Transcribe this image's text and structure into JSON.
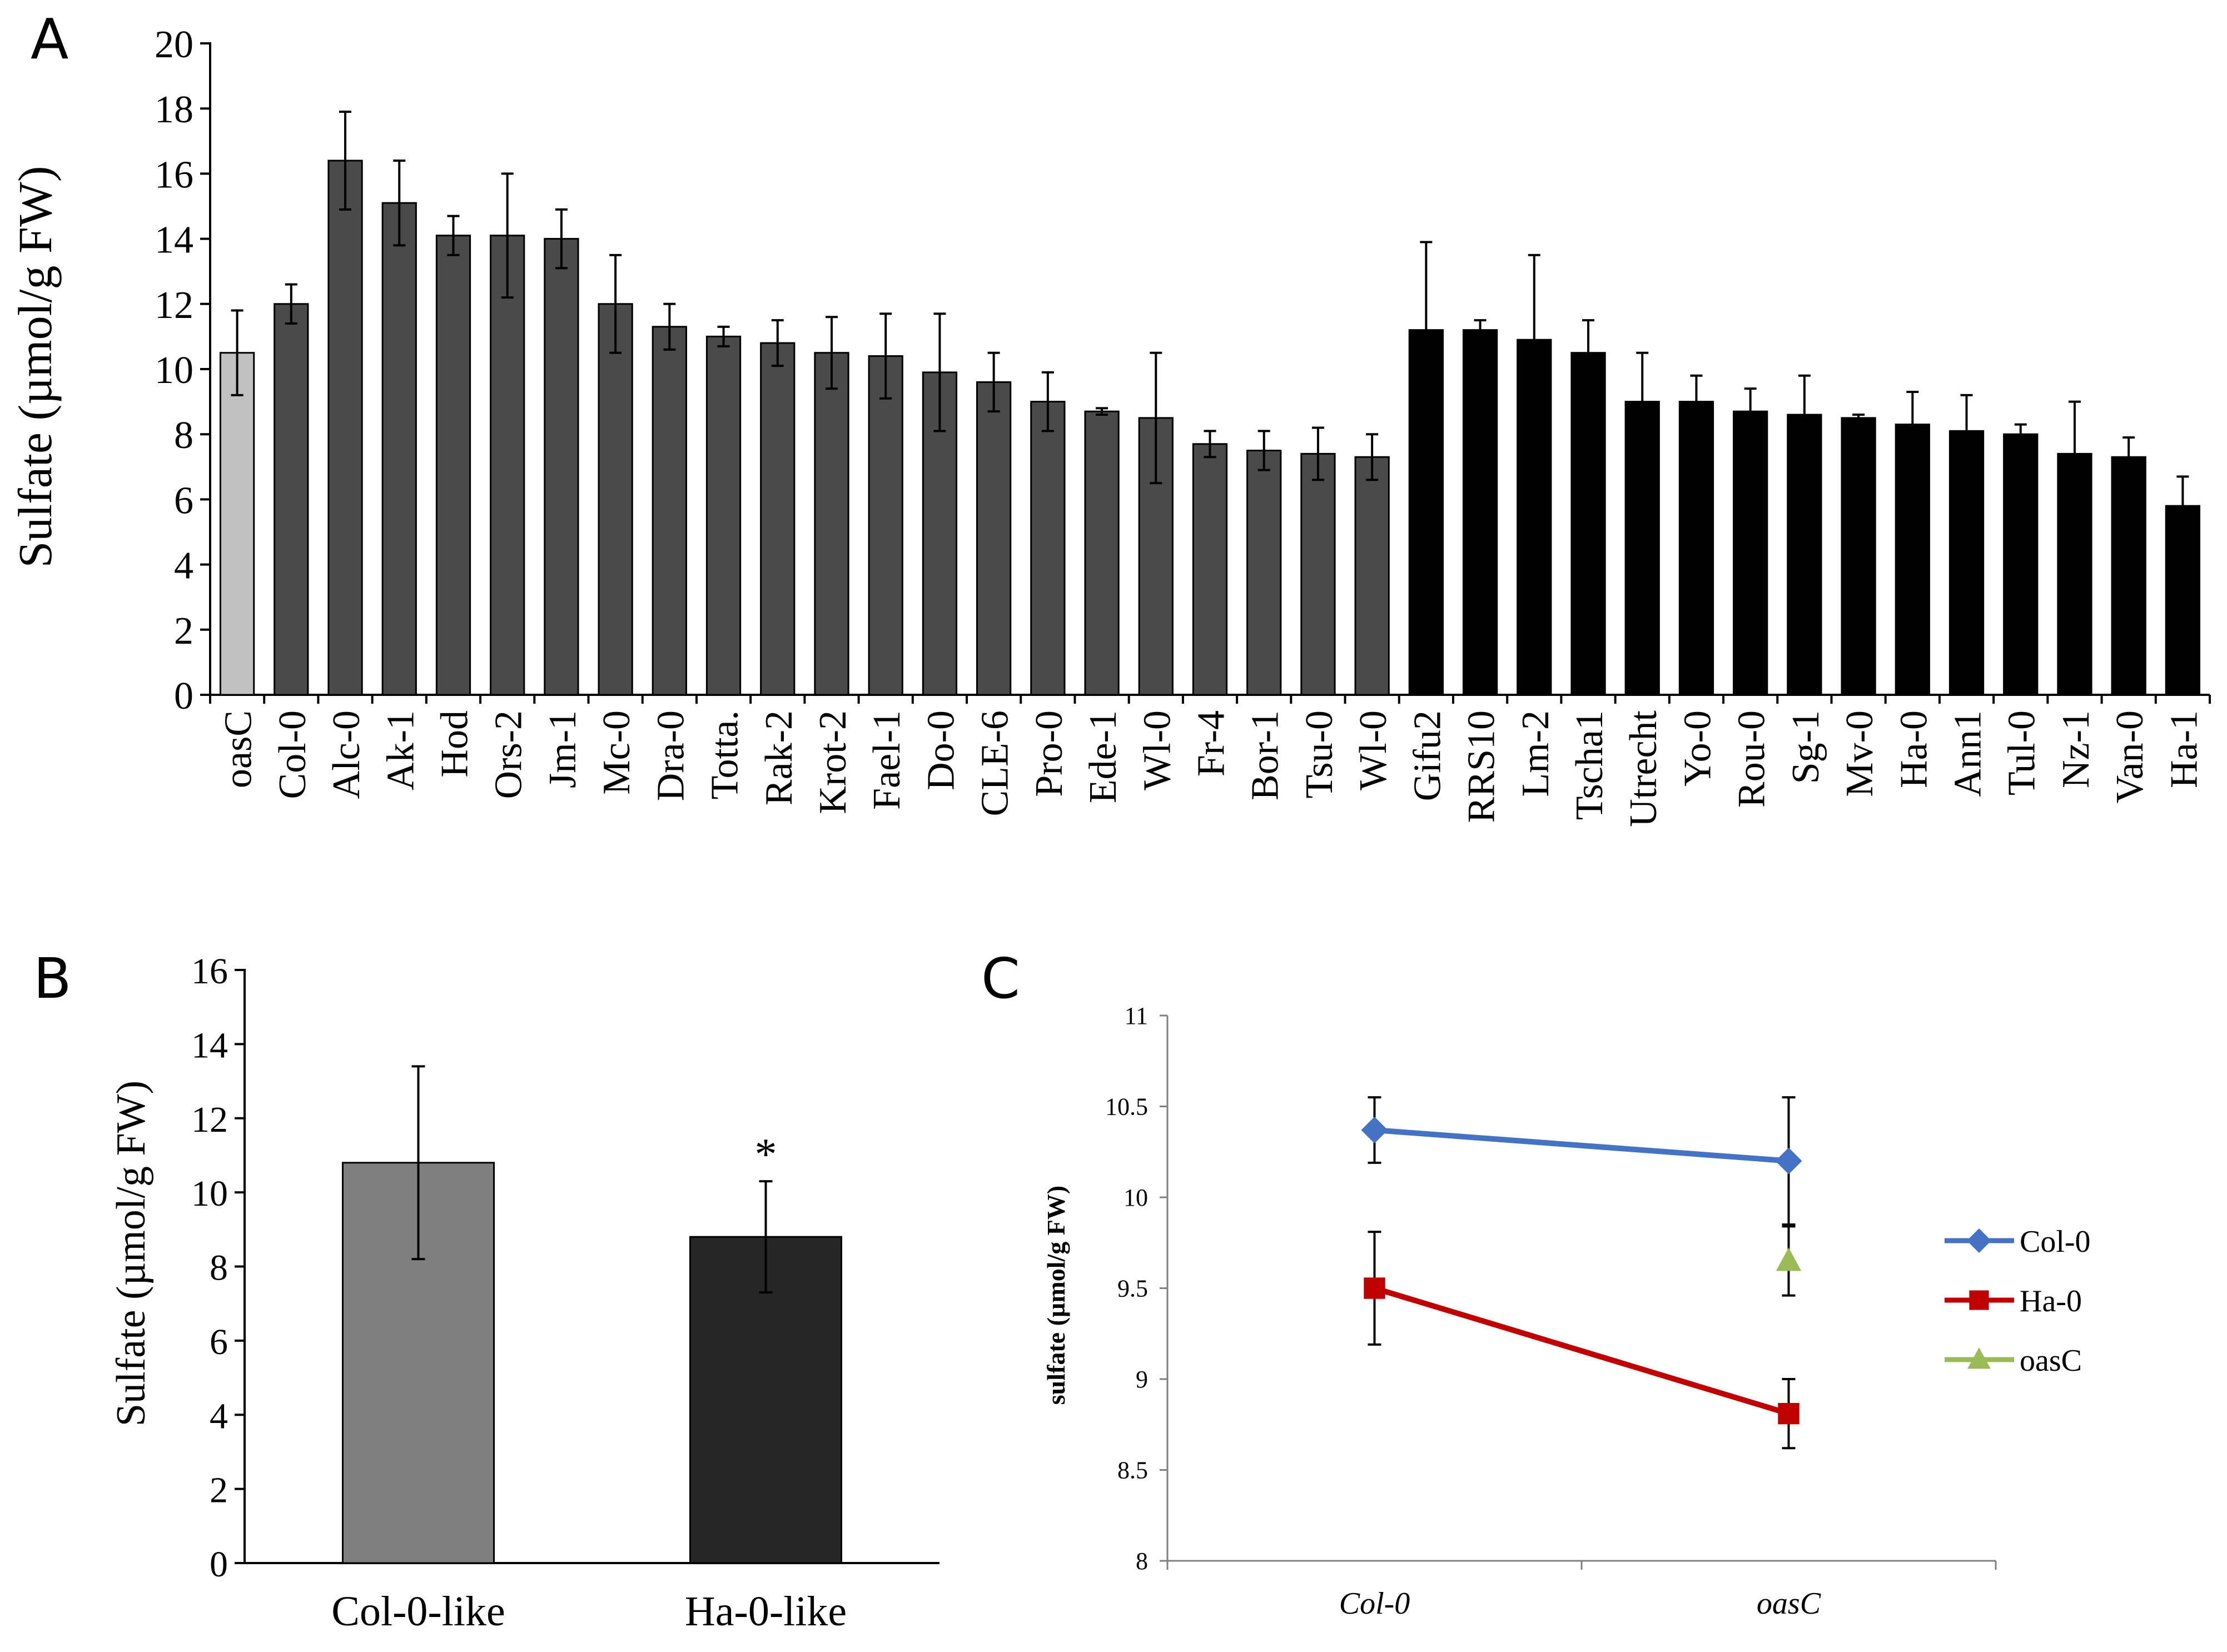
{
  "panels": {
    "a": {
      "letter": "A"
    },
    "b": {
      "letter": "B"
    },
    "c": {
      "letter": "C"
    }
  },
  "chart_data": [
    {
      "id": "A",
      "type": "bar",
      "ylabel": "Sulfate (µmol/g FW)",
      "ylim": [
        0,
        20
      ],
      "yticks": [
        0,
        2,
        4,
        6,
        8,
        10,
        12,
        14,
        16,
        18,
        20
      ],
      "categories": [
        "oasC",
        "Col-0",
        "Alc-0",
        "Ak-1",
        "Hod",
        "Ors-2",
        "Jm-1",
        "Mc-0",
        "Dra-0",
        "Totta.",
        "Rak-2",
        "Krot-2",
        "Fael-1",
        "Do-0",
        "CLE-6",
        "Pro-0",
        "Ede-1",
        "Wl-0",
        "Fr-4",
        "Bor-1",
        "Tsu-0",
        "Wl-0",
        "Gifu2",
        "RRS10",
        "Lm-2",
        "Tscha1",
        "Utrecht",
        "Yo-0",
        "Rou-0",
        "Sg-1",
        "Mv-0",
        "Ha-0",
        "Ann1",
        "Tul-0",
        "Nz-1",
        "Van-0",
        "Ha-1"
      ],
      "values": [
        10.5,
        12.0,
        16.4,
        15.1,
        14.1,
        14.1,
        14.0,
        12.0,
        11.3,
        11.0,
        10.8,
        10.5,
        10.4,
        9.9,
        9.6,
        9.0,
        8.7,
        8.5,
        7.7,
        7.5,
        7.4,
        7.3,
        11.2,
        11.2,
        10.9,
        10.5,
        9.0,
        9.0,
        8.7,
        8.6,
        8.5,
        8.3,
        8.1,
        8.0,
        7.4,
        7.3,
        5.8
      ],
      "errors": [
        1.3,
        0.6,
        1.5,
        1.3,
        0.6,
        1.9,
        0.9,
        1.5,
        0.7,
        0.3,
        0.7,
        1.1,
        1.3,
        1.8,
        0.9,
        0.9,
        0.1,
        2.0,
        0.4,
        0.6,
        0.8,
        0.7,
        2.7,
        0.3,
        2.6,
        1.0,
        1.5,
        0.8,
        0.7,
        1.2,
        0.1,
        1.0,
        1.1,
        0.3,
        1.6,
        0.6,
        0.9
      ],
      "colors": [
        "#c0c0c0",
        "#4a4a4a",
        "#4a4a4a",
        "#4a4a4a",
        "#4a4a4a",
        "#4a4a4a",
        "#4a4a4a",
        "#4a4a4a",
        "#4a4a4a",
        "#4a4a4a",
        "#4a4a4a",
        "#4a4a4a",
        "#4a4a4a",
        "#4a4a4a",
        "#4a4a4a",
        "#4a4a4a",
        "#4a4a4a",
        "#4a4a4a",
        "#4a4a4a",
        "#4a4a4a",
        "#4a4a4a",
        "#4a4a4a",
        "#000000",
        "#000000",
        "#000000",
        "#000000",
        "#000000",
        "#000000",
        "#000000",
        "#000000",
        "#000000",
        "#000000",
        "#000000",
        "#000000",
        "#000000",
        "#000000",
        "#000000"
      ]
    },
    {
      "id": "B",
      "type": "bar",
      "ylabel": "Sulfate (µmol/g FW)",
      "ylim": [
        0,
        16
      ],
      "yticks": [
        0,
        2,
        4,
        6,
        8,
        10,
        12,
        14,
        16
      ],
      "categories": [
        "Col-0-like",
        "Ha-0-like"
      ],
      "values": [
        10.8,
        8.8
      ],
      "errors": [
        2.6,
        1.5
      ],
      "colors": [
        "#7f7f7f",
        "#262626"
      ],
      "annotation": "*"
    },
    {
      "id": "C",
      "type": "line",
      "ylabel": "sulfate (µmol/g FW)",
      "ylim": [
        8,
        11
      ],
      "yticks": [
        "8",
        "8.5",
        "9",
        "9.5",
        "10",
        "10.5",
        "11"
      ],
      "categories": [
        "Col-0",
        "oasC"
      ],
      "series": [
        {
          "name": "Col-0",
          "values": [
            10.37,
            10.2
          ],
          "errors": [
            0.18,
            0.35
          ],
          "color": "#4472c4",
          "marker": "diamond"
        },
        {
          "name": "Ha-0",
          "values": [
            9.5,
            8.81
          ],
          "errors": [
            0.31,
            0.19
          ],
          "color": "#c00000",
          "marker": "square"
        },
        {
          "name": "oasC",
          "values": [
            null,
            9.65
          ],
          "errors": [
            null,
            0.19
          ],
          "color": "#9bbb59",
          "marker": "triangle"
        }
      ],
      "legend": "right"
    }
  ]
}
